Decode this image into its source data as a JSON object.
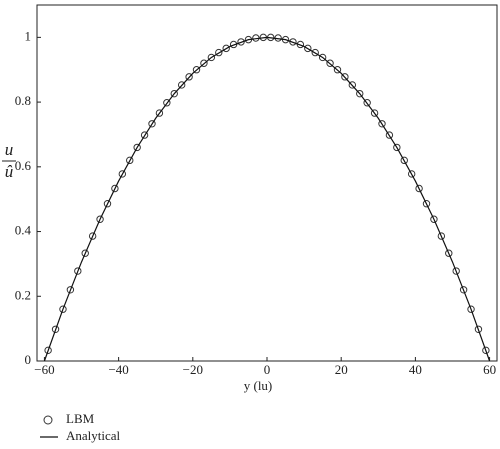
{
  "chart_data": {
    "type": "line",
    "xlabel": "y (lu)",
    "ylabel": {
      "numerator": "u",
      "denominator": "û"
    },
    "xlim": [
      -62,
      62
    ],
    "ylim": [
      0,
      1.1
    ],
    "xticks": [
      {
        "value": -60,
        "label": "−60"
      },
      {
        "value": -40,
        "label": "−40"
      },
      {
        "value": -20,
        "label": "−20"
      },
      0,
      20,
      40,
      60
    ],
    "yticks": [
      0,
      0.2,
      0.4,
      0.6,
      0.8,
      1
    ],
    "grid": false,
    "legend": "bottom-left",
    "series": [
      {
        "name": "LBM",
        "color": "#333333",
        "marker": "circle",
        "x": [
          -59,
          -57,
          -55,
          -53,
          -51,
          -49,
          -47,
          -45,
          -43,
          -41,
          -39,
          -37,
          -35,
          -33,
          -31,
          -29,
          -27,
          -25,
          -23,
          -21,
          -19,
          -17,
          -15,
          -13,
          -11,
          -9,
          -7,
          -5,
          -3,
          -1,
          1,
          3,
          5,
          7,
          9,
          11,
          13,
          15,
          17,
          19,
          21,
          23,
          25,
          27,
          29,
          31,
          33,
          35,
          37,
          39,
          41,
          43,
          45,
          47,
          49,
          51,
          53,
          55,
          57,
          59
        ],
        "values": [
          0.033,
          0.098,
          0.16,
          0.22,
          0.278,
          0.333,
          0.386,
          0.438,
          0.486,
          0.533,
          0.578,
          0.62,
          0.66,
          0.698,
          0.733,
          0.766,
          0.798,
          0.826,
          0.853,
          0.878,
          0.9,
          0.92,
          0.938,
          0.953,
          0.966,
          0.978,
          0.986,
          0.993,
          0.998,
          1.0,
          1.0,
          0.998,
          0.993,
          0.986,
          0.978,
          0.966,
          0.953,
          0.938,
          0.92,
          0.9,
          0.878,
          0.853,
          0.826,
          0.798,
          0.766,
          0.733,
          0.698,
          0.66,
          0.62,
          0.578,
          0.533,
          0.486,
          0.438,
          0.386,
          0.333,
          0.278,
          0.22,
          0.16,
          0.098,
          0.033
        ]
      },
      {
        "name": "Analytical",
        "color": "#111111",
        "marker": "none",
        "x": [
          -60,
          -55,
          -50,
          -45,
          -40,
          -35,
          -30,
          -25,
          -20,
          -15,
          -10,
          -5,
          0,
          5,
          10,
          15,
          20,
          25,
          30,
          35,
          40,
          45,
          50,
          55,
          60
        ],
        "values": [
          0,
          0.16,
          0.306,
          0.438,
          0.556,
          0.66,
          0.75,
          0.826,
          0.889,
          0.938,
          0.972,
          0.993,
          1,
          0.993,
          0.972,
          0.938,
          0.889,
          0.826,
          0.75,
          0.66,
          0.556,
          0.438,
          0.306,
          0.16,
          0
        ]
      }
    ]
  }
}
